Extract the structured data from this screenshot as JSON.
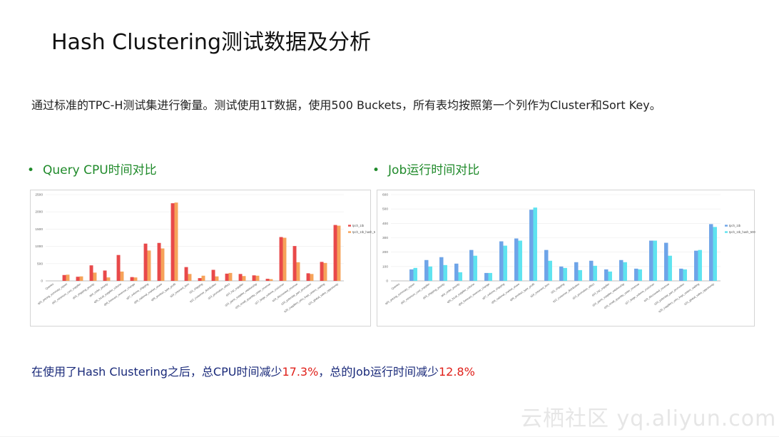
{
  "slide": {
    "title": "Hash Clustering测试数据及分析",
    "description": "通过标准的TPC-H测试集进行衡量。测试使用1T数据，使用500 Buckets，所有表均按照第一个列作为Cluster和Sort Key。",
    "bullet_left": "Query CPU时间对比",
    "bullet_right": "Job运行时间对比",
    "summary_prefix": "在使用了Hash Clustering之后，总CPU时间减少",
    "summary_cpu": "17.3%",
    "summary_middle": "，总的Job运行时间减少",
    "summary_job": "12.8%",
    "watermark": "云栖社区 yq.aliyun.com",
    "bullet_symbol": "•"
  },
  "chart_data": [
    {
      "type": "bar",
      "colors": [
        "#e8494a",
        "#f6a35a"
      ],
      "ylim": [
        0,
        2500
      ],
      "yticks": [
        0,
        500,
        1000,
        1500,
        2000,
        2500
      ],
      "legend_position": "right",
      "categories": [
        "Queries",
        "q01_pricing_summary_report",
        "q02_minimum_cost_supplier",
        "q03_shipping_priority",
        "q04_order_priority",
        "q05_local_supplier_volume",
        "q06_forecast_revenue_change",
        "q07_volume_shipping",
        "q08_national_market_share",
        "q09_product_type_profit",
        "q10_returned_item",
        "q11_shipping",
        "q12_customer_distribution",
        "q13_promotion_effect",
        "q14_top_supplier",
        "q15_parts_supplier_relationship",
        "q16_small_quantity_order_revenue",
        "q17_large_volume_customer",
        "q18_discounted_revenue",
        "q19_potential_part_promotion",
        "q20_suppliers_who_kept_orders_waiting",
        "q21_global_sales_opportunity"
      ],
      "series": [
        {
          "name": "tpch_1tb",
          "values": [
            0,
            170,
            120,
            450,
            300,
            750,
            110,
            1080,
            1100,
            2250,
            400,
            80,
            320,
            210,
            200,
            160,
            60,
            1270,
            1010,
            220,
            550,
            1620
          ]
        },
        {
          "name": "tpch_1tb_hash_5",
          "values": [
            0,
            180,
            130,
            240,
            100,
            270,
            100,
            880,
            940,
            2270,
            200,
            150,
            130,
            230,
            140,
            150,
            50,
            1250,
            540,
            200,
            520,
            1600
          ]
        }
      ]
    },
    {
      "type": "bar",
      "colors": [
        "#6ea4e8",
        "#5fe3ef"
      ],
      "ylim": [
        0,
        600
      ],
      "yticks": [
        0,
        100,
        200,
        300,
        400,
        500,
        600
      ],
      "legend_position": "right",
      "categories": [
        "Queries",
        "q01_pricing_summary_report",
        "q02_minimum_cost_supplier",
        "q03_shipping_priority",
        "q04_order_priority",
        "q05_local_supplier_volume",
        "q06_forecast_revenue_change",
        "q07_volume_shipping",
        "q08_national_market_share",
        "q09_product_type_profit",
        "q10_returned_item",
        "q11_shipping",
        "q12_customer_distribution",
        "q13_promotion_effect",
        "q14_top_supplier",
        "q15_parts_supplier_relationship",
        "q16_small_quantity_order_revenue",
        "q17_large_volume_customer",
        "q18_discounted_revenue",
        "q19_potential_part_promotion",
        "q20_suppliers_who_kept_orders_waiting",
        "q21_global_sales_opportunity"
      ],
      "series": [
        {
          "name": "tpch_1tb",
          "values": [
            0,
            80,
            145,
            165,
            120,
            215,
            55,
            275,
            295,
            495,
            215,
            100,
            130,
            140,
            80,
            145,
            85,
            280,
            265,
            85,
            210,
            395
          ]
        },
        {
          "name": "tpch_1tb_hash_500",
          "values": [
            0,
            90,
            100,
            110,
            60,
            175,
            55,
            245,
            280,
            510,
            140,
            90,
            75,
            105,
            65,
            130,
            80,
            280,
            175,
            80,
            215,
            375
          ]
        }
      ]
    }
  ]
}
